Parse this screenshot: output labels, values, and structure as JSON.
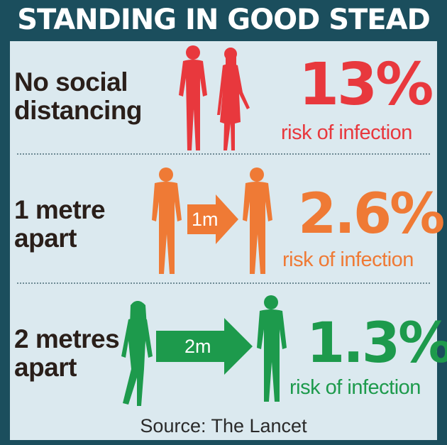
{
  "title": "STANDING IN GOOD STEAD",
  "colors": {
    "background": "#1b4e5d",
    "panel": "#dbe9ef",
    "red": "#e8383d",
    "orange": "#ef7a35",
    "green": "#1d9a4c"
  },
  "rows": [
    {
      "label": "No social\ndistancing",
      "percent": "13%",
      "risk_text": "risk of infection",
      "distance": "",
      "color": "#e8383d"
    },
    {
      "label": "1 metre\napart",
      "percent": "2.6%",
      "risk_text": "risk of infection",
      "distance": "1m",
      "color": "#ef7a35"
    },
    {
      "label": "2 metres\napart",
      "percent": "1.3%",
      "risk_text": "risk of infection",
      "distance": "2m",
      "color": "#1d9a4c"
    }
  ],
  "source": "Source: The Lancet"
}
